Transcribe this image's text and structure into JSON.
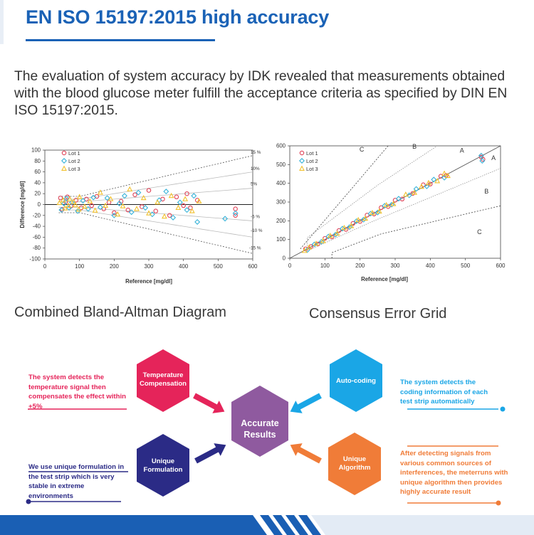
{
  "header": {
    "title": "EN ISO 15197:2015 high accuracy"
  },
  "intro": {
    "text": "The evaluation of system accuracy by IDK revealed that measurements obtained with the blood glucose meter fulfill the acceptance criteria as specified by DIN EN ISO 15197:2015."
  },
  "captions": {
    "bland_altman": "Combined Bland-Altman Diagram",
    "error_grid": "Consensus Error Grid"
  },
  "colors": {
    "title": "#1a62b6",
    "lot1": "#e0455a",
    "lot2": "#39b3d9",
    "lot3": "#f2c12e",
    "temperature": "#e5245a",
    "autocoding": "#1aa6e6",
    "formulation": "#2b2b86",
    "algorithm": "#f07c38",
    "center": "#8f5a9f"
  },
  "chart_data": [
    {
      "type": "scatter",
      "title": "",
      "xlabel": "Reference [mg/dl]",
      "ylabel": "Difference [mg/dl]",
      "xlim": [
        0,
        600
      ],
      "ylim": [
        -100,
        100
      ],
      "xticks": [
        "0",
        "100",
        "200",
        "300",
        "400",
        "500",
        "600"
      ],
      "yticks": [
        "100",
        "80",
        "60",
        "40",
        "20",
        "0",
        "-20",
        "-40",
        "-60",
        "-80",
        "-100"
      ],
      "legend": [
        "Lot 1",
        "Lot 2",
        "Lot 3"
      ],
      "legend_position": "top-left",
      "band_labels": [
        "15 %",
        "10%",
        "5%",
        "-5 %",
        "-10 %",
        "-15 %"
      ],
      "series": [
        {
          "name": "Lot 1",
          "points": [
            [
              45,
              12
            ],
            [
              60,
              5
            ],
            [
              75,
              -3
            ],
            [
              90,
              8
            ],
            [
              105,
              -6
            ],
            [
              120,
              10
            ],
            [
              135,
              -2
            ],
            [
              150,
              15
            ],
            [
              170,
              -8
            ],
            [
              185,
              4
            ],
            [
              200,
              -15
            ],
            [
              220,
              6
            ],
            [
              240,
              -10
            ],
            [
              260,
              18
            ],
            [
              280,
              -4
            ],
            [
              300,
              26
            ],
            [
              320,
              -12
            ],
            [
              340,
              10
            ],
            [
              360,
              -20
            ],
            [
              380,
              14
            ],
            [
              400,
              -2
            ],
            [
              410,
              20
            ],
            [
              420,
              -6
            ],
            [
              440,
              8
            ],
            [
              550,
              -20
            ],
            [
              550,
              -8
            ],
            [
              50,
              -9
            ],
            [
              65,
              14
            ]
          ]
        },
        {
          "name": "Lot 2",
          "points": [
            [
              48,
              -10
            ],
            [
              62,
              11
            ],
            [
              78,
              4
            ],
            [
              95,
              -12
            ],
            [
              110,
              7
            ],
            [
              125,
              -8
            ],
            [
              140,
              13
            ],
            [
              160,
              -5
            ],
            [
              180,
              12
            ],
            [
              200,
              -20
            ],
            [
              215,
              2
            ],
            [
              230,
              16
            ],
            [
              250,
              -14
            ],
            [
              270,
              22
            ],
            [
              290,
              -6
            ],
            [
              310,
              -18
            ],
            [
              330,
              8
            ],
            [
              350,
              24
            ],
            [
              370,
              -24
            ],
            [
              390,
              4
            ],
            [
              410,
              -10
            ],
            [
              430,
              16
            ],
            [
              440,
              -32
            ],
            [
              520,
              -26
            ],
            [
              550,
              -16
            ],
            [
              55,
              2
            ],
            [
              70,
              -6
            ]
          ]
        },
        {
          "name": "Lot 3",
          "points": [
            [
              42,
              3
            ],
            [
              58,
              -7
            ],
            [
              72,
              10
            ],
            [
              88,
              -1
            ],
            [
              100,
              14
            ],
            [
              115,
              -4
            ],
            [
              130,
              6
            ],
            [
              145,
              -11
            ],
            [
              160,
              22
            ],
            [
              175,
              -2
            ],
            [
              190,
              10
            ],
            [
              210,
              -18
            ],
            [
              225,
              -3
            ],
            [
              245,
              28
            ],
            [
              265,
              -8
            ],
            [
              285,
              12
            ],
            [
              300,
              -16
            ],
            [
              325,
              4
            ],
            [
              345,
              -22
            ],
            [
              365,
              16
            ],
            [
              385,
              -6
            ],
            [
              405,
              10
            ],
            [
              425,
              -12
            ],
            [
              445,
              6
            ],
            [
              53,
              8
            ],
            [
              68,
              -2
            ],
            [
              83,
              5
            ],
            [
              98,
              -9
            ]
          ]
        }
      ]
    },
    {
      "type": "scatter",
      "title": "",
      "xlabel": "Reference [mg/dl]",
      "ylabel": "",
      "xlim": [
        0,
        600
      ],
      "ylim": [
        0,
        600
      ],
      "xticks": [
        "0",
        "100",
        "200",
        "300",
        "400",
        "500",
        "600"
      ],
      "yticks": [
        "600",
        "500",
        "400",
        "300",
        "200",
        "100",
        "0"
      ],
      "legend": [
        "Lot 1",
        "Lot 2",
        "Lot 3"
      ],
      "legend_position": "top-left",
      "zone_labels": [
        "C",
        "B",
        "A",
        "A",
        "B",
        "C"
      ],
      "series": [
        {
          "name": "Lot 1",
          "points": [
            [
              45,
              50
            ],
            [
              60,
              62
            ],
            [
              80,
              76
            ],
            [
              100,
              106
            ],
            [
              120,
              114
            ],
            [
              140,
              148
            ],
            [
              160,
              154
            ],
            [
              180,
              186
            ],
            [
              200,
              196
            ],
            [
              220,
              230
            ],
            [
              240,
              236
            ],
            [
              260,
              270
            ],
            [
              280,
              276
            ],
            [
              300,
              310
            ],
            [
              320,
              316
            ],
            [
              350,
              346
            ],
            [
              380,
              392
            ],
            [
              400,
              396
            ],
            [
              430,
              438
            ],
            [
              445,
              442
            ],
            [
              545,
              540
            ],
            [
              550,
              528
            ]
          ]
        },
        {
          "name": "Lot 2",
          "points": [
            [
              50,
              44
            ],
            [
              70,
              74
            ],
            [
              90,
              88
            ],
            [
              110,
              116
            ],
            [
              130,
              126
            ],
            [
              150,
              158
            ],
            [
              170,
              166
            ],
            [
              190,
              198
            ],
            [
              210,
              206
            ],
            [
              230,
              238
            ],
            [
              250,
              244
            ],
            [
              270,
              280
            ],
            [
              290,
              286
            ],
            [
              310,
              318
            ],
            [
              340,
              336
            ],
            [
              360,
              370
            ],
            [
              390,
              384
            ],
            [
              410,
              420
            ],
            [
              440,
              430
            ],
            [
              545,
              548
            ],
            [
              548,
              520
            ]
          ]
        },
        {
          "name": "Lot 3",
          "points": [
            [
              42,
              40
            ],
            [
              55,
              58
            ],
            [
              75,
              78
            ],
            [
              95,
              92
            ],
            [
              115,
              120
            ],
            [
              135,
              132
            ],
            [
              155,
              162
            ],
            [
              175,
              172
            ],
            [
              195,
              204
            ],
            [
              215,
              212
            ],
            [
              235,
              242
            ],
            [
              255,
              250
            ],
            [
              275,
              284
            ],
            [
              295,
              290
            ],
            [
              330,
              340
            ],
            [
              355,
              350
            ],
            [
              375,
              382
            ],
            [
              395,
              402
            ],
            [
              420,
              412
            ],
            [
              440,
              452
            ],
            [
              450,
              440
            ]
          ]
        }
      ]
    }
  ],
  "features": {
    "center": {
      "label": "Accurate Results"
    },
    "temperature": {
      "label": "Temperature Compensation",
      "desc": "The system detects the temperature signal then compensates the effect within +5%"
    },
    "autocoding": {
      "label": "Auto-coding",
      "desc": "The system detects the coding information of each test strip automatically"
    },
    "formulation": {
      "label": "Unique Formulation",
      "desc": "We use unique formulation in the test strip which is very stable in extreme environments"
    },
    "algorithm": {
      "label": "Unique Algorithm",
      "desc": "After detecting signals from various common sources of interferences, the meterruns with unique algorithm then provides highly accurate result"
    }
  }
}
